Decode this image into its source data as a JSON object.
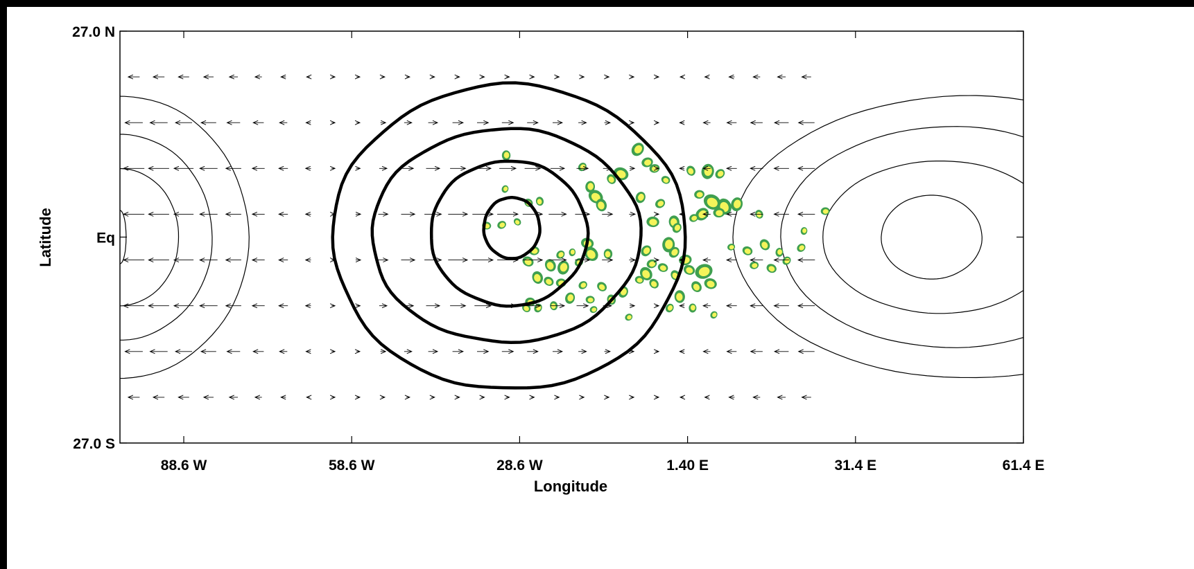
{
  "chart_data": {
    "type": "map-contour-vector",
    "xlabel": "Longitude",
    "ylabel": "Latitude",
    "x_ticks": [
      {
        "label": "88.6 W",
        "value": -88.6
      },
      {
        "label": "58.6 W",
        "value": -58.6
      },
      {
        "label": "28.6 W",
        "value": -28.6
      },
      {
        "label": "1.40 E",
        "value": 1.4
      },
      {
        "label": "31.4 E",
        "value": 31.4
      },
      {
        "label": "61.4 E",
        "value": 61.4
      }
    ],
    "y_ticks": [
      {
        "label": "27.0 N",
        "value": 27
      },
      {
        "label": "Eq",
        "value": 0
      },
      {
        "label": "27.0 S",
        "value": -27
      }
    ],
    "xlim": [
      -100.0,
      61.4
    ],
    "ylim": [
      -27.0,
      27.0
    ],
    "colors": {
      "background_frame": "#000000",
      "plot": "#ffffff",
      "contour": "#000000",
      "precip_outer": "#3f9f4f",
      "precip_inner": "#f4f45a"
    },
    "thick_contours": [
      {
        "level": 1,
        "center": [
          -30.0,
          1.2
        ],
        "rx": 5.0,
        "ry": 4.0
      },
      {
        "level": 2,
        "center": [
          -30.5,
          0.5
        ],
        "rx": 14.0,
        "ry": 9.5
      },
      {
        "level": 3,
        "center": [
          -31.0,
          0.2
        ],
        "rx": 24.0,
        "ry": 14.0
      },
      {
        "level": 4,
        "center": [
          -30.5,
          0.0
        ],
        "rx": 31.5,
        "ry": 20.0
      }
    ],
    "thin_contours_east": [
      {
        "level": 1,
        "center": [
          45.0,
          0.0
        ],
        "rx": 9.0,
        "ry": 5.5
      },
      {
        "level": 2,
        "center": [
          46.5,
          0.0
        ],
        "rx": 21.0,
        "ry": 10.0
      },
      {
        "level": 3,
        "center": [
          48.5,
          0.0
        ],
        "rx": 30.5,
        "ry": 14.5
      },
      {
        "level": 4,
        "center": [
          51.5,
          0.0
        ],
        "rx": 42.0,
        "ry": 18.5
      }
    ],
    "thin_contours_west": [
      {
        "level": 1,
        "center": [
          -100.0,
          0.0
        ],
        "rx": 1.1,
        "ry": 3.5
      },
      {
        "level": 2,
        "center": [
          -100.0,
          0.0
        ],
        "rx": 10.5,
        "ry": 9.0
      },
      {
        "level": 3,
        "center": [
          -100.0,
          0.0
        ],
        "rx": 16.5,
        "ry": 13.5
      },
      {
        "level": 4,
        "center": [
          -100.0,
          0.0
        ],
        "rx": 23.0,
        "ry": 18.5
      }
    ],
    "vector_grid": {
      "x_start": -97.5,
      "x_step": 4.45,
      "count": 28,
      "rows": [
        {
          "lat": 21.0,
          "west_amp": 0.55,
          "east_amp": 0.55,
          "ridge_amp": 0.15
        },
        {
          "lat": 15.0,
          "west_amp": 0.85,
          "east_amp": 0.95,
          "ridge_amp": 0.55
        },
        {
          "lat": 9.0,
          "west_amp": 1.0,
          "east_amp": 1.0,
          "ridge_amp": 0.8
        },
        {
          "lat": 3.0,
          "west_amp": 1.0,
          "east_amp": 1.0,
          "ridge_amp": 1.0
        },
        {
          "lat": -3.0,
          "west_amp": 1.0,
          "east_amp": 1.0,
          "ridge_amp": 1.0
        },
        {
          "lat": -9.0,
          "west_amp": 1.0,
          "east_amp": 1.0,
          "ridge_amp": 0.8
        },
        {
          "lat": -15.0,
          "west_amp": 0.85,
          "east_amp": 0.95,
          "ridge_amp": 0.55
        },
        {
          "lat": -21.0,
          "west_amp": 0.55,
          "east_amp": 0.55,
          "ridge_amp": 0.15
        }
      ]
    },
    "precip_blobs": [
      [
        -31.0,
        10.7,
        0.6
      ],
      [
        -7.5,
        11.5,
        0.9
      ],
      [
        -5.8,
        9.8,
        0.7
      ],
      [
        -10.5,
        8.3,
        1.0
      ],
      [
        -12.2,
        7.6,
        0.6
      ],
      [
        -16.0,
        6.6,
        0.7
      ],
      [
        -17.4,
        9.2,
        0.5
      ],
      [
        -4.5,
        9.0,
        0.6
      ],
      [
        -2.5,
        7.5,
        0.5
      ],
      [
        2.0,
        8.7,
        0.6
      ],
      [
        5.0,
        8.6,
        1.0
      ],
      [
        7.2,
        8.3,
        0.6
      ],
      [
        3.5,
        5.6,
        0.6
      ],
      [
        5.8,
        4.6,
        1.2
      ],
      [
        8.0,
        4.0,
        1.1
      ],
      [
        10.2,
        4.3,
        0.9
      ],
      [
        4.0,
        3.0,
        0.9
      ],
      [
        7.0,
        3.2,
        0.7
      ],
      [
        -15.0,
        5.3,
        1.0
      ],
      [
        -14.0,
        4.2,
        0.8
      ],
      [
        -7.0,
        5.2,
        0.7
      ],
      [
        -3.5,
        4.4,
        0.6
      ],
      [
        -4.8,
        2.0,
        0.8
      ],
      [
        -27.0,
        4.5,
        0.5
      ],
      [
        -25.0,
        4.7,
        0.5
      ],
      [
        -31.2,
        6.3,
        0.4
      ],
      [
        -31.8,
        1.6,
        0.5
      ],
      [
        -34.5,
        1.5,
        0.5
      ],
      [
        -29.0,
        2.0,
        0.4
      ],
      [
        -1.0,
        2.0,
        0.8
      ],
      [
        -0.5,
        1.2,
        0.6
      ],
      [
        2.5,
        2.5,
        0.5
      ],
      [
        -16.5,
        -0.8,
        0.8
      ],
      [
        -15.8,
        -2.2,
        1.0
      ],
      [
        -12.8,
        -2.2,
        0.6
      ],
      [
        -6.0,
        -1.8,
        0.7
      ],
      [
        -5.0,
        -3.5,
        0.6
      ],
      [
        -3.0,
        -4.0,
        0.6
      ],
      [
        -6.0,
        -4.8,
        0.9
      ],
      [
        -2.0,
        -1.0,
        1.0
      ],
      [
        -1.0,
        -2.0,
        0.7
      ],
      [
        1.0,
        -3.0,
        0.8
      ],
      [
        1.7,
        -4.3,
        0.7
      ],
      [
        -0.8,
        -5.0,
        0.6
      ],
      [
        -19.2,
        -2.0,
        0.4
      ],
      [
        -21.3,
        -2.3,
        0.5
      ],
      [
        -26.0,
        -1.8,
        0.6
      ],
      [
        -27.1,
        -3.2,
        0.7
      ],
      [
        -23.1,
        -3.7,
        0.8
      ],
      [
        -20.8,
        -4.0,
        0.9
      ],
      [
        -18.0,
        -3.3,
        0.5
      ],
      [
        -21.2,
        -6.0,
        0.6
      ],
      [
        -23.4,
        -5.8,
        0.6
      ],
      [
        -25.4,
        -5.3,
        0.8
      ],
      [
        -19.6,
        -8.0,
        0.7
      ],
      [
        -17.3,
        -6.3,
        0.5
      ],
      [
        -16.0,
        -8.2,
        0.5
      ],
      [
        -13.9,
        -6.5,
        0.6
      ],
      [
        -12.2,
        -8.2,
        0.6
      ],
      [
        -10.1,
        -7.2,
        0.7
      ],
      [
        -9.1,
        -10.5,
        0.4
      ],
      [
        -26.7,
        -8.5,
        0.6
      ],
      [
        -27.4,
        -9.3,
        0.5
      ],
      [
        -22.5,
        -9.0,
        0.5
      ],
      [
        -25.3,
        -9.3,
        0.5
      ],
      [
        -15.4,
        -9.5,
        0.4
      ],
      [
        -7.2,
        -5.6,
        0.5
      ],
      [
        -4.6,
        -6.1,
        0.6
      ],
      [
        0.0,
        -7.8,
        0.8
      ],
      [
        -1.8,
        -9.3,
        0.5
      ],
      [
        4.3,
        -4.5,
        1.2
      ],
      [
        5.5,
        -6.1,
        0.8
      ],
      [
        3.0,
        -6.5,
        0.7
      ],
      [
        2.3,
        -9.3,
        0.5
      ],
      [
        6.1,
        -10.2,
        0.4
      ],
      [
        9.2,
        -1.3,
        0.4
      ],
      [
        12.1,
        -1.8,
        0.6
      ],
      [
        15.2,
        -1.0,
        0.7
      ],
      [
        17.8,
        -2.0,
        0.5
      ],
      [
        19.1,
        -3.1,
        0.5
      ],
      [
        13.3,
        -3.7,
        0.5
      ],
      [
        16.4,
        -4.1,
        0.6
      ],
      [
        14.2,
        3.0,
        0.5
      ],
      [
        22.2,
        0.8,
        0.4
      ],
      [
        21.7,
        -1.4,
        0.5
      ],
      [
        26.0,
        3.4,
        0.5
      ]
    ]
  }
}
